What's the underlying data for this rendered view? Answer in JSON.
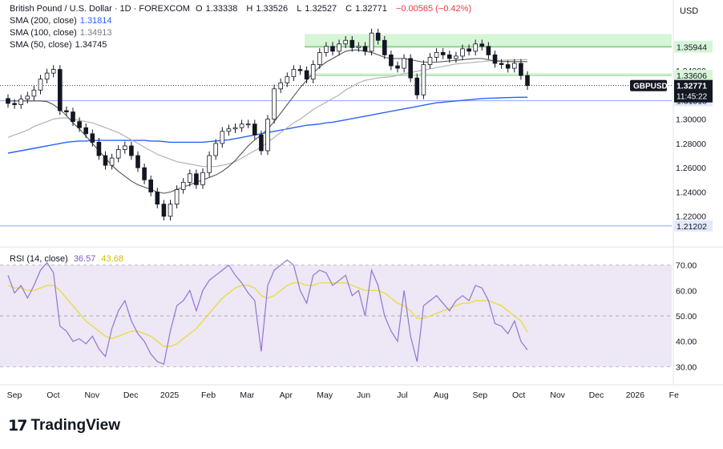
{
  "header": {
    "symbol": "British Pound / U.S. Dollar · 1D · FOREXCOM",
    "open_label": "O",
    "open": "1.33338",
    "high_label": "H",
    "high": "1.33526",
    "low_label": "L",
    "low": "1.32527",
    "close_label": "C",
    "close": "1.32771",
    "change": "−0.00565 (−0.42%)"
  },
  "indicators": [
    {
      "label": "SMA (200, close)",
      "value": "1.31814",
      "color": "#2962ff"
    },
    {
      "label": "SMA (100, close)",
      "value": "1.34913",
      "color": "#9e9e9e"
    },
    {
      "label": "SMA (50, close)",
      "value": "1.34745",
      "color": "#555555"
    }
  ],
  "rsi_header": {
    "label": "RSI (14, close)",
    "value": "36.57",
    "ma_value": "43.68",
    "color": "#7e57c2",
    "ma_color": "#d4c800"
  },
  "brand": {
    "name": "TradingView"
  },
  "colors": {
    "up": "#1b1b1b",
    "down": "#1b1b1b",
    "price_badge": "#131722",
    "level_line": "#2962ff",
    "band": "#d7f5d7",
    "rsi": "#9575cd",
    "rsi_band": "#ede7f6"
  },
  "chart_data": [
    {
      "type": "candlestick",
      "title": "British Pound / U.S. Dollar · 1D · FOREXCOM",
      "currency": "USD",
      "symbol_tag": "GBPUSD",
      "countdown": "11:45:22",
      "last_price": 1.32771,
      "ylim": [
        1.2,
        1.385
      ],
      "price_ticks": [
        1.22,
        1.24,
        1.26,
        1.28,
        1.3,
        1.34
      ],
      "x_labels": [
        "Sep",
        "Oct",
        "Nov",
        "Dec",
        "2025",
        "Feb",
        "Mar",
        "Apr",
        "May",
        "Jun",
        "Jul",
        "Aug",
        "Sep",
        "Oct",
        "Nov",
        "Dec",
        "2026",
        "Fe"
      ],
      "levels": [
        1.36,
        1.35944,
        1.33606,
        1.31518,
        1.21202
      ],
      "zones": [
        [
          1.36,
          1.3702
        ],
        [
          1.35944,
          1.36
        ],
        [
          1.33606,
          1.338
        ]
      ],
      "close": [
        1.313,
        1.312,
        1.3165,
        1.319,
        1.324,
        1.333,
        1.338,
        1.341,
        1.307,
        1.306,
        1.298,
        1.293,
        1.288,
        1.281,
        1.27,
        1.262,
        1.268,
        1.275,
        1.278,
        1.27,
        1.26,
        1.25,
        1.24,
        1.23,
        1.22,
        1.23,
        1.242,
        1.248,
        1.255,
        1.246,
        1.256,
        1.27,
        1.28,
        1.29,
        1.292,
        1.293,
        1.296,
        1.296,
        1.287,
        1.274,
        1.3,
        1.325,
        1.33,
        1.335,
        1.341,
        1.34,
        1.333,
        1.345,
        1.355,
        1.36,
        1.356,
        1.362,
        1.365,
        1.359,
        1.36,
        1.356,
        1.371,
        1.365,
        1.353,
        1.344,
        1.342,
        1.35,
        1.334,
        1.32,
        1.345,
        1.351,
        1.355,
        1.353,
        1.35,
        1.352,
        1.358,
        1.356,
        1.362,
        1.36,
        1.353,
        1.346,
        1.345,
        1.342,
        1.346,
        1.336,
        1.3277
      ],
      "sma_50": [
        1.315,
        1.315,
        1.315,
        1.315,
        1.315,
        1.315,
        1.3145,
        1.312,
        1.308,
        1.303,
        1.297,
        1.292,
        1.286,
        1.28,
        1.274,
        1.268,
        1.262,
        1.257,
        1.253,
        1.249,
        1.246,
        1.244,
        1.242,
        1.24,
        1.239,
        1.24,
        1.242,
        1.244,
        1.246,
        1.248,
        1.25,
        1.252,
        1.254,
        1.257,
        1.261,
        1.266,
        1.272,
        1.278,
        1.283,
        1.287,
        1.292,
        1.298,
        1.305,
        1.312,
        1.319,
        1.326,
        1.332,
        1.338,
        1.343,
        1.347,
        1.35,
        1.353,
        1.356,
        1.357,
        1.357,
        1.356,
        1.355,
        1.353,
        1.351,
        1.35,
        1.35,
        1.35,
        1.349,
        1.348,
        1.347,
        1.347,
        1.347,
        1.3475,
        1.348,
        1.3485,
        1.349,
        1.3495,
        1.35,
        1.35,
        1.349,
        1.348,
        1.3476,
        1.3475,
        1.3475,
        1.3475,
        1.3475
      ],
      "sma_100": [
        1.285,
        1.287,
        1.289,
        1.291,
        1.294,
        1.296,
        1.298,
        1.3,
        1.301,
        1.301,
        1.3,
        1.299,
        1.298,
        1.297,
        1.295,
        1.293,
        1.291,
        1.289,
        1.286,
        1.283,
        1.28,
        1.277,
        1.274,
        1.271,
        1.269,
        1.267,
        1.265,
        1.264,
        1.263,
        1.262,
        1.261,
        1.261,
        1.261,
        1.262,
        1.263,
        1.265,
        1.268,
        1.271,
        1.274,
        1.277,
        1.281,
        1.285,
        1.289,
        1.293,
        1.297,
        1.3,
        1.304,
        1.308,
        1.311,
        1.314,
        1.317,
        1.32,
        1.324,
        1.327,
        1.33,
        1.332,
        1.333,
        1.334,
        1.3345,
        1.335,
        1.336,
        1.3375,
        1.3385,
        1.3395,
        1.3405,
        1.3415,
        1.3425,
        1.3435,
        1.3445,
        1.3455,
        1.346,
        1.3465,
        1.347,
        1.3475,
        1.348,
        1.3483,
        1.3485,
        1.3487,
        1.3489,
        1.349,
        1.3491
      ],
      "sma_200": [
        1.272,
        1.273,
        1.274,
        1.275,
        1.276,
        1.277,
        1.278,
        1.279,
        1.28,
        1.281,
        1.2815,
        1.282,
        1.282,
        1.2825,
        1.2825,
        1.2825,
        1.2825,
        1.2825,
        1.2825,
        1.2825,
        1.2825,
        1.2825,
        1.282,
        1.282,
        1.2815,
        1.281,
        1.281,
        1.281,
        1.281,
        1.281,
        1.281,
        1.2815,
        1.282,
        1.2825,
        1.283,
        1.284,
        1.285,
        1.286,
        1.287,
        1.288,
        1.289,
        1.29,
        1.291,
        1.292,
        1.293,
        1.294,
        1.295,
        1.2955,
        1.296,
        1.297,
        1.2975,
        1.2985,
        1.2995,
        1.3005,
        1.3015,
        1.3025,
        1.3035,
        1.3045,
        1.3055,
        1.3065,
        1.3075,
        1.3085,
        1.3095,
        1.3105,
        1.3115,
        1.3125,
        1.3135,
        1.314,
        1.3145,
        1.315,
        1.3155,
        1.316,
        1.3165,
        1.317,
        1.3172,
        1.3174,
        1.3176,
        1.3178,
        1.318,
        1.3181,
        1.3181
      ]
    },
    {
      "type": "line",
      "title": "RSI (14, close)",
      "ylim": [
        26,
        74
      ],
      "ticks": [
        30.0,
        40.0,
        50.0,
        60.0,
        70.0
      ],
      "band": [
        30,
        70
      ],
      "values": [
        66,
        59,
        62,
        57,
        62,
        68,
        71,
        67,
        46,
        44,
        40,
        41,
        39,
        42,
        37,
        34,
        45,
        52,
        56,
        48,
        43,
        40,
        35,
        32,
        31,
        44,
        54,
        56,
        60,
        52,
        60,
        64,
        66,
        68,
        70,
        66,
        63,
        59,
        56,
        36,
        62,
        68,
        70,
        72,
        70,
        60,
        55,
        66,
        68,
        67,
        62,
        64,
        66,
        58,
        60,
        50,
        68,
        62,
        50,
        44,
        40,
        60,
        42,
        32,
        54,
        56,
        58,
        55,
        52,
        56,
        58,
        56,
        62,
        61,
        56,
        47,
        46,
        43,
        48,
        40,
        36.57
      ],
      "ma": [
        62,
        61,
        61,
        60,
        60,
        61,
        62,
        62,
        60,
        57,
        54,
        51,
        48,
        46,
        44,
        42,
        41,
        42,
        43,
        44,
        44,
        43,
        42,
        40,
        38,
        38,
        39,
        41,
        43,
        45,
        48,
        51,
        54,
        57,
        59,
        61,
        62,
        62,
        61,
        58,
        57,
        58,
        60,
        62,
        63,
        63,
        62,
        62,
        63,
        63,
        63,
        63,
        63,
        62,
        61,
        60,
        60,
        60,
        59,
        57,
        55,
        54,
        52,
        49,
        49,
        50,
        51,
        52,
        53,
        54,
        55,
        55,
        56,
        56,
        56,
        55,
        54,
        52,
        50,
        48,
        43.68
      ]
    }
  ]
}
